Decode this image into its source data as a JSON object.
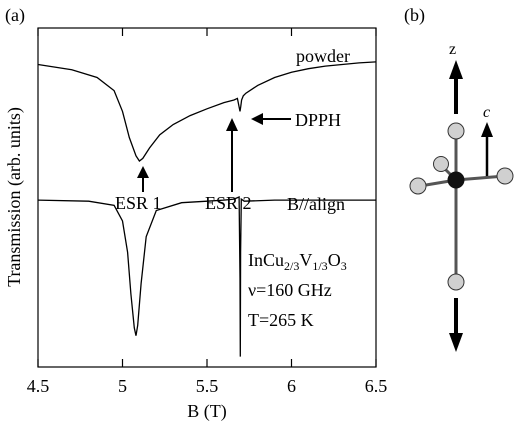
{
  "panel_labels": {
    "a": "(a)",
    "b": "(b)"
  },
  "chart_data": {
    "type": "line",
    "title": "",
    "xlabel": "B (T)",
    "ylabel": "Transmission (arb. units)",
    "xlim": [
      4.5,
      6.5
    ],
    "xticks": [
      4.5,
      5,
      5.5,
      6,
      6.5
    ],
    "xtick_labels": [
      "4.5",
      "5",
      "5.5",
      "6",
      "6.5"
    ],
    "y_units": "arbitrary",
    "series": [
      {
        "name": "powder",
        "x": [
          4.5,
          4.7,
          4.85,
          4.95,
          5.0,
          5.04,
          5.08,
          5.1,
          5.12,
          5.16,
          5.22,
          5.3,
          5.4,
          5.5,
          5.6,
          5.66,
          5.68,
          5.695,
          5.7,
          5.705,
          5.715,
          5.73,
          5.8,
          5.9,
          6.0,
          6.1,
          6.2,
          6.3,
          6.4,
          6.5
        ],
        "y": [
          5.6,
          5.5,
          5.35,
          5.1,
          4.7,
          4.2,
          3.85,
          3.75,
          3.8,
          4.0,
          4.25,
          4.45,
          4.62,
          4.75,
          4.87,
          4.92,
          4.95,
          4.7,
          4.8,
          4.92,
          5.0,
          5.05,
          5.2,
          5.35,
          5.45,
          5.52,
          5.57,
          5.6,
          5.63,
          5.65
        ]
      },
      {
        "name": "B//align",
        "x": [
          4.5,
          4.8,
          4.95,
          5.0,
          5.03,
          5.05,
          5.07,
          5.08,
          5.09,
          5.11,
          5.14,
          5.2,
          5.35,
          5.5,
          5.6,
          5.66,
          5.69,
          5.695,
          5.697,
          5.699,
          5.703,
          5.72,
          5.9,
          6.2,
          6.5
        ],
        "y": [
          3.0,
          2.98,
          2.9,
          2.6,
          2.0,
          1.2,
          0.55,
          0.4,
          0.6,
          1.4,
          2.3,
          2.8,
          2.95,
          2.98,
          3.0,
          3.02,
          3.06,
          1.5,
          0.0,
          2.0,
          3.02,
          2.98,
          3.0,
          3.0,
          3.0
        ]
      }
    ],
    "annotations": [
      "powder",
      "ESR 1",
      "ESR 2",
      "DPPH",
      "B//align"
    ],
    "legend": "none",
    "grid": false
  },
  "info_text": {
    "compound": {
      "base1": "InCu",
      "sub1": "2/3",
      "base2": "V",
      "sub2": "1/3",
      "base3": "O",
      "sub3": "3"
    },
    "frequency": "ν=160 GHz",
    "temperature": "T=265 K"
  },
  "schematic": {
    "z_label": "z",
    "c_label": "c",
    "center_atom_color": "#111111",
    "ligand_atom_color": "#d0d0d0"
  }
}
